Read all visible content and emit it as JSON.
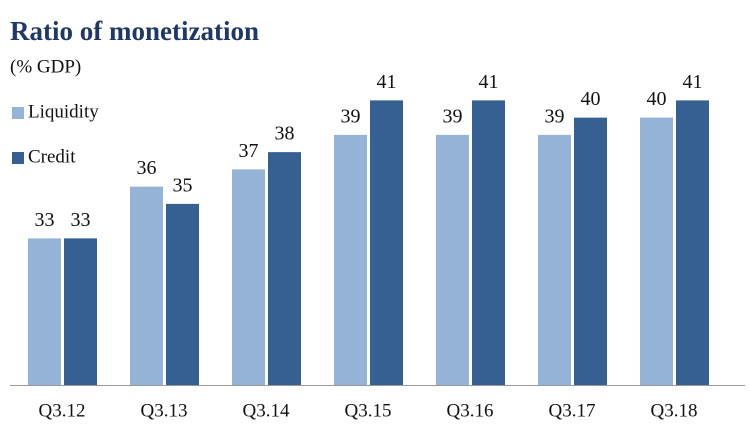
{
  "chart_data": {
    "type": "bar",
    "title": "Ratio of monetization",
    "subtitle": "(% GDP)",
    "categories": [
      "Q3.12",
      "Q3.13",
      "Q3.14",
      "Q3.15",
      "Q3.16",
      "Q3.17",
      "Q3.18"
    ],
    "series": [
      {
        "name": "Liquidity",
        "color": "#95b3d7",
        "values": [
          33,
          36,
          37,
          39,
          39,
          39,
          40
        ]
      },
      {
        "name": "Credit",
        "color": "#376092",
        "values": [
          33,
          35,
          38,
          41,
          41,
          40,
          41
        ]
      }
    ],
    "ylim": [
      24.5,
      42.5
    ],
    "legend": "top-left"
  }
}
